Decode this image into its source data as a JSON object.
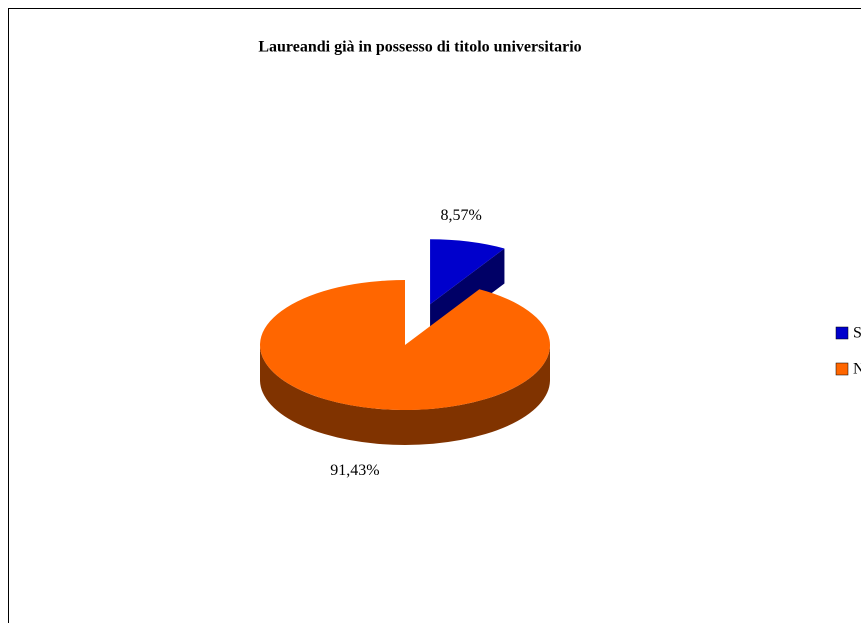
{
  "chart_data": {
    "type": "pie",
    "title": "Laureandi già in possesso di titolo universitario",
    "categories": [
      "Sì",
      "No"
    ],
    "values": [
      8.57,
      91.43
    ],
    "value_labels": [
      "8,57%",
      "91,43%"
    ],
    "colors": [
      "#0000cc",
      "#ff6600"
    ],
    "legend": "right"
  }
}
